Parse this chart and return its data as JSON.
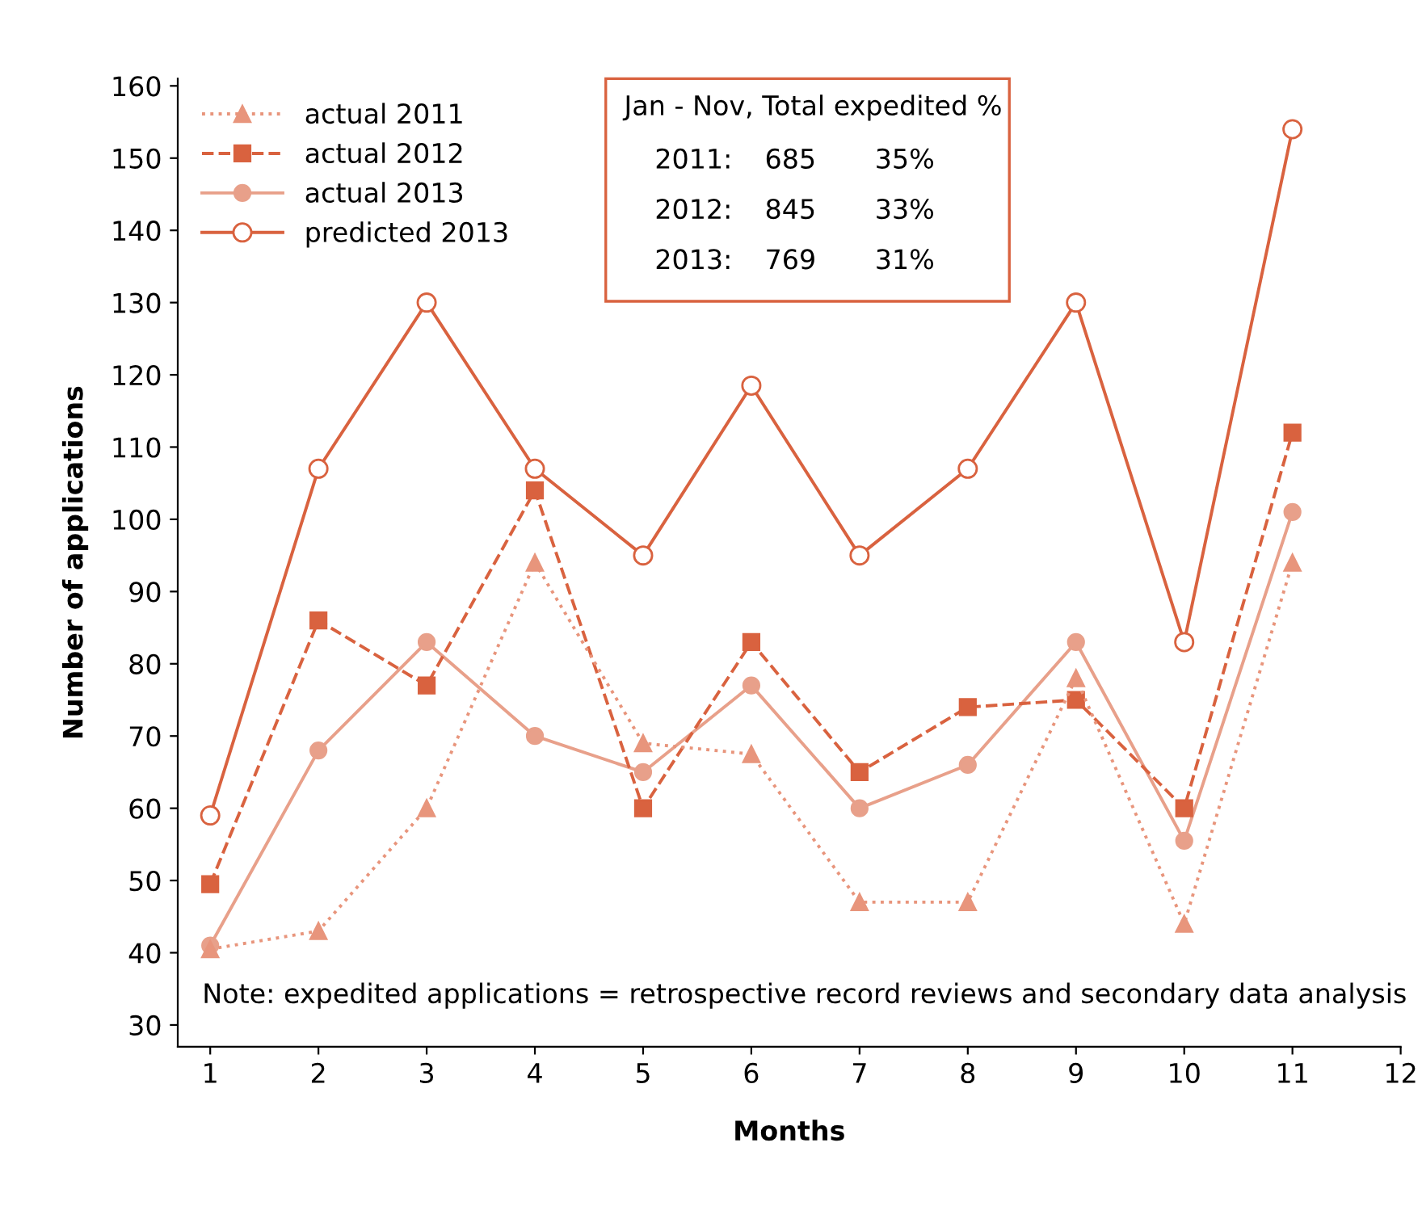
{
  "chart_data": {
    "type": "line",
    "xlabel": "Months",
    "ylabel": "Number of applications",
    "x": [
      1,
      2,
      3,
      4,
      5,
      6,
      7,
      8,
      9,
      10,
      11
    ],
    "series": [
      {
        "name": "actual 2011",
        "color": "#e8957c",
        "marker": "triangle",
        "line_style": "dotted",
        "values": [
          40.5,
          43,
          60,
          94,
          69,
          67.5,
          47,
          47,
          78,
          44,
          94
        ]
      },
      {
        "name": "actual 2012",
        "color": "#d9623f",
        "marker": "square",
        "line_style": "dashed",
        "values": [
          49.5,
          86,
          77,
          104,
          60,
          83,
          65,
          74,
          75,
          60,
          112
        ]
      },
      {
        "name": "actual 2013",
        "color": "#e8a08a",
        "marker": "circle",
        "line_style": "solid",
        "values": [
          41,
          68,
          83,
          70,
          65,
          77,
          60,
          66,
          83,
          55.5,
          101
        ]
      },
      {
        "name": "predicted 2013",
        "color": "#d9623f",
        "marker": "circle",
        "line_style": "solid",
        "values": [
          59,
          107,
          130,
          107,
          95,
          118.5,
          95,
          107,
          130,
          83,
          154
        ]
      }
    ],
    "annotations": [
      "Jan - Nov, Total expedited %",
      "2011:\t685\t35%",
      "2012:\t845\t33%",
      "2013:\t769\t31%",
      "Note: expedited applications = retrospective record reviews and secondary data analysis"
    ],
    "xlim": [
      0.7,
      12
    ],
    "ylim": [
      27,
      161
    ],
    "xticks": [
      1,
      2,
      3,
      4,
      5,
      6,
      7,
      8,
      9,
      10,
      11,
      12
    ],
    "yticks": [
      30,
      40,
      50,
      60,
      70,
      80,
      90,
      100,
      110,
      120,
      130,
      140,
      150,
      160
    ],
    "grid": false,
    "legend": "top left"
  }
}
